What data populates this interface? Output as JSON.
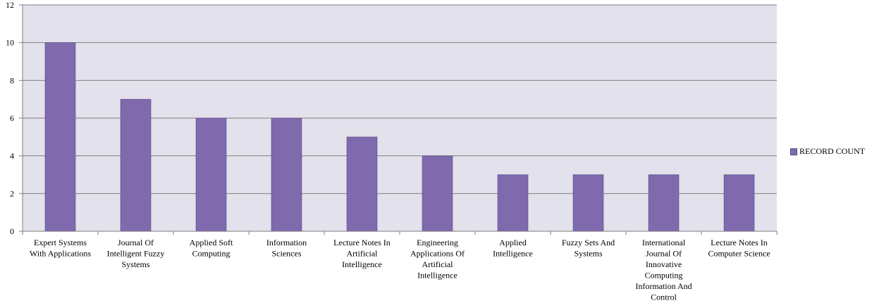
{
  "chart_data": {
    "type": "bar",
    "categories": [
      [
        "Expert Systems",
        "With Applications"
      ],
      [
        "Journal Of",
        "Intelligent Fuzzy",
        "Systems"
      ],
      [
        "Applied Soft",
        "Computing"
      ],
      [
        "Information",
        "Sciences"
      ],
      [
        "Lecture Notes In",
        "Artificial",
        "Intelligence"
      ],
      [
        "Engineering",
        "Applications Of",
        "Artificial",
        "Intelligence"
      ],
      [
        "Applied",
        "Intelligence"
      ],
      [
        "Fuzzy Sets And",
        "Systems"
      ],
      [
        "International",
        "Journal Of",
        "Innovative",
        "Computing",
        "Information And",
        "Control"
      ],
      [
        "Lecture Notes In",
        "Computer Science"
      ]
    ],
    "series": [
      {
        "name": "RECORD COUNT",
        "values": [
          10,
          7,
          6,
          6,
          5,
          4,
          3,
          3,
          3,
          3
        ]
      }
    ],
    "ylim": [
      0,
      12
    ],
    "yticks": [
      0,
      2,
      4,
      6,
      8,
      10,
      12
    ],
    "grid": true,
    "legend_position": "right",
    "colors": {
      "bar": "#7f6aae",
      "bar_stroke": "#5a4a86",
      "plot_background": "#e3e1ec",
      "gridline": "#7f7f7f",
      "axis": "#7f7f7f"
    }
  }
}
